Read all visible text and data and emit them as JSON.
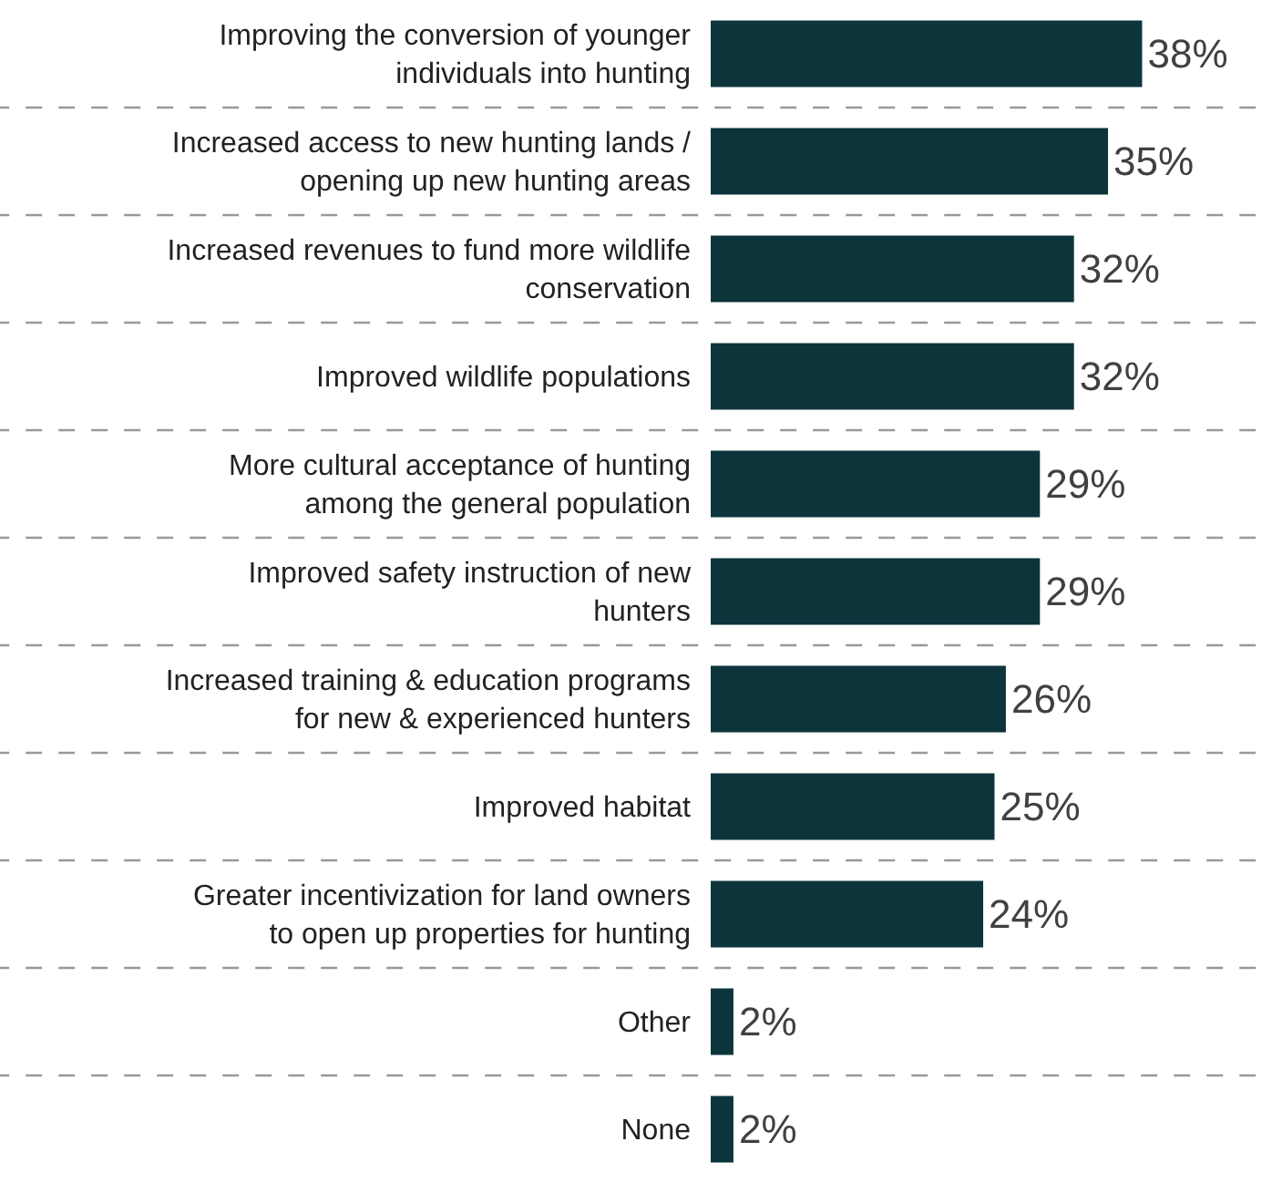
{
  "chart_data": {
    "type": "bar",
    "orientation": "horizontal",
    "tick_labels": "y",
    "grid": "y",
    "line_style": "dashed",
    "categories": [
      "Improving the conversion of younger\nindividuals into hunting",
      "Increased access to new hunting lands /\nopening up new hunting areas",
      "Increased revenues to fund more wildlife\nconservation",
      "Improved wildlife populations",
      "More cultural acceptance of hunting\namong the general population",
      "Improved safety instruction of new\nhunters",
      "Increased training & education programs\nfor new & experienced hunters",
      "Improved habitat",
      "Greater incentivization for land owners\nto open up properties for hunting",
      "Other",
      "None"
    ],
    "values": [
      38,
      35,
      32,
      32,
      29,
      29,
      26,
      25,
      24,
      2,
      2
    ],
    "value_labels": [
      "38%",
      "35%",
      "32%",
      "32%",
      "29%",
      "29%",
      "26%",
      "25%",
      "24%",
      "2%",
      "2%"
    ],
    "color": "#0b353b"
  }
}
